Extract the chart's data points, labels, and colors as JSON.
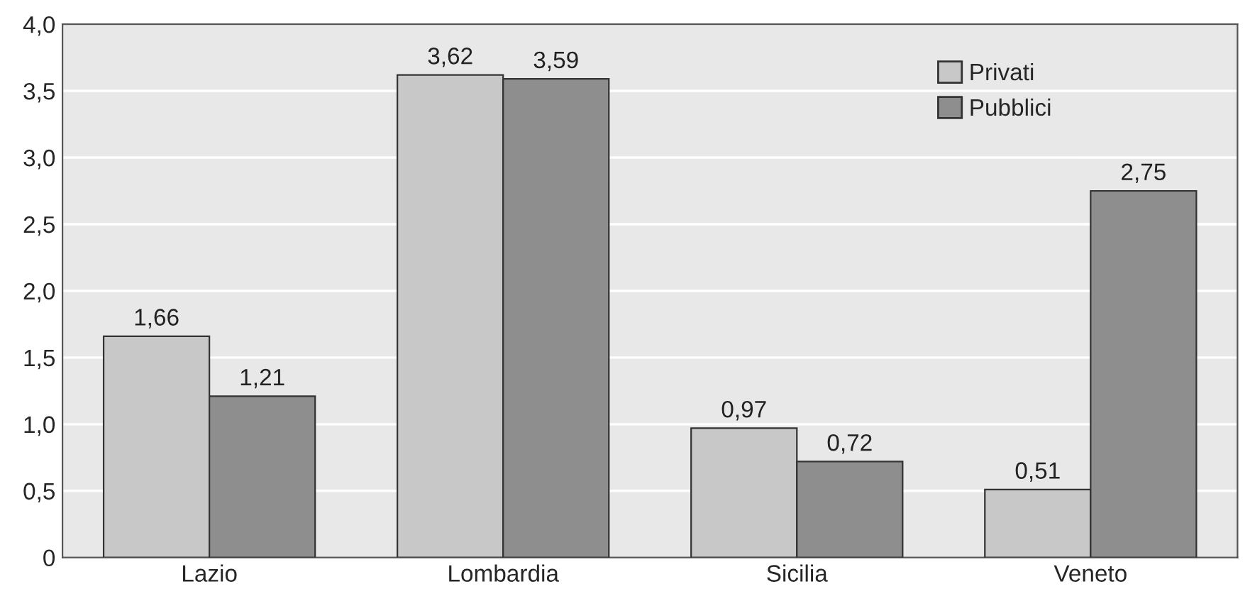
{
  "chart_data": {
    "type": "bar",
    "categories": [
      "Lazio",
      "Lombardia",
      "Sicilia",
      "Veneto"
    ],
    "series": [
      {
        "name": "Privati",
        "color": "#c8c8c8",
        "values": [
          1.66,
          3.62,
          0.97,
          0.51
        ],
        "value_labels": [
          "1,66",
          "3,62",
          "0,97",
          "0,51"
        ]
      },
      {
        "name": "Pubblici",
        "color": "#8e8e8e",
        "values": [
          1.21,
          3.59,
          0.72,
          2.75
        ],
        "value_labels": [
          "1,21",
          "3,59",
          "0,72",
          "2,75"
        ]
      }
    ],
    "ylim": [
      0,
      4
    ],
    "yticks": [
      {
        "value": 0,
        "label": "0"
      },
      {
        "value": 0.5,
        "label": "0,5"
      },
      {
        "value": 1,
        "label": "1,0"
      },
      {
        "value": 1.5,
        "label": "1,5"
      },
      {
        "value": 2,
        "label": "2,0"
      },
      {
        "value": 2.5,
        "label": "2,5"
      },
      {
        "value": 3,
        "label": "3,0"
      },
      {
        "value": 3.5,
        "label": "3,5"
      },
      {
        "value": 4,
        "label": "4,0"
      }
    ],
    "grid": "y",
    "legend": "top right"
  }
}
